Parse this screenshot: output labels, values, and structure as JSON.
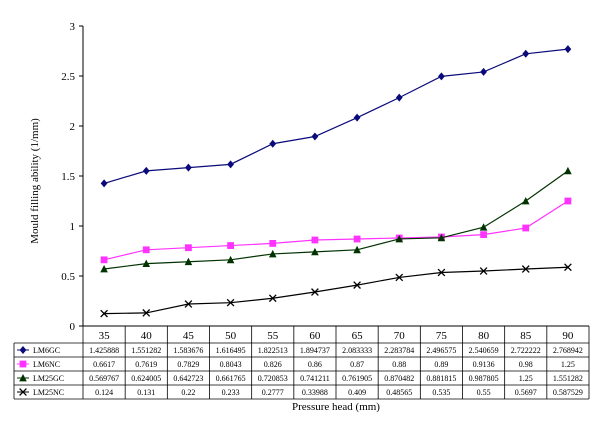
{
  "chart_data": {
    "type": "line",
    "title": "",
    "xlabel": "Pressure head (mm)",
    "ylabel": "Mould filling ability (1/mm)",
    "ylim": [
      0,
      3
    ],
    "yticks": [
      "0",
      "0.5",
      "1",
      "1.5",
      "2",
      "2.5",
      "3"
    ],
    "grid": false,
    "legend": "data-table-below",
    "categories": [
      "35",
      "40",
      "45",
      "50",
      "55",
      "60",
      "65",
      "70",
      "75",
      "80",
      "85",
      "90"
    ],
    "series": [
      {
        "name": "LM6GC",
        "color": "#0a0a7a",
        "marker": "diamond",
        "values": [
          1.425888,
          1.551282,
          1.583676,
          1.616495,
          1.822513,
          1.894737,
          2.083333,
          2.283784,
          2.496575,
          2.540659,
          2.722222,
          2.768942
        ],
        "labels": [
          "1.425888",
          "1.551282",
          "1.583676",
          "1.616495",
          "1.822513",
          "1.894737",
          "2.083333",
          "2.283784",
          "2.496575",
          "2.540659",
          "2.722222",
          "2.768942"
        ]
      },
      {
        "name": "LM6NC",
        "color": "#ff33ff",
        "marker": "square",
        "values": [
          0.6617,
          0.7619,
          0.7829,
          0.8043,
          0.826,
          0.86,
          0.87,
          0.88,
          0.89,
          0.9136,
          0.98,
          1.25
        ],
        "labels": [
          "0.6617",
          "0.7619",
          "0.7829",
          "0.8043",
          "0.826",
          "0.86",
          "0.87",
          "0.88",
          "0.89",
          "0.9136",
          "0.98",
          "1.25"
        ]
      },
      {
        "name": "LM25GC",
        "color": "#003300",
        "marker": "triangle",
        "values": [
          0.569767,
          0.624005,
          0.642723,
          0.661765,
          0.720853,
          0.741211,
          0.761905,
          0.870482,
          0.881815,
          0.987805,
          1.25,
          1.551282
        ],
        "labels": [
          "0.569767",
          "0.624005",
          "0.642723",
          "0.661765",
          "0.720853",
          "0.741211",
          "0.761905",
          "0.870482",
          "0.881815",
          "0.987805",
          "1.25",
          "1.551282"
        ]
      },
      {
        "name": "LM25NC",
        "color": "#000000",
        "marker": "x",
        "values": [
          0.124,
          0.131,
          0.22,
          0.233,
          0.2777,
          0.33988,
          0.409,
          0.48565,
          0.535,
          0.55,
          0.5697,
          0.587529
        ],
        "labels": [
          "0.124",
          "0.131",
          "0.22",
          "0.233",
          "0.2777",
          "0.33988",
          "0.409",
          "0.48565",
          "0.535",
          "0.55",
          "0.5697",
          "0.587529"
        ]
      }
    ]
  }
}
